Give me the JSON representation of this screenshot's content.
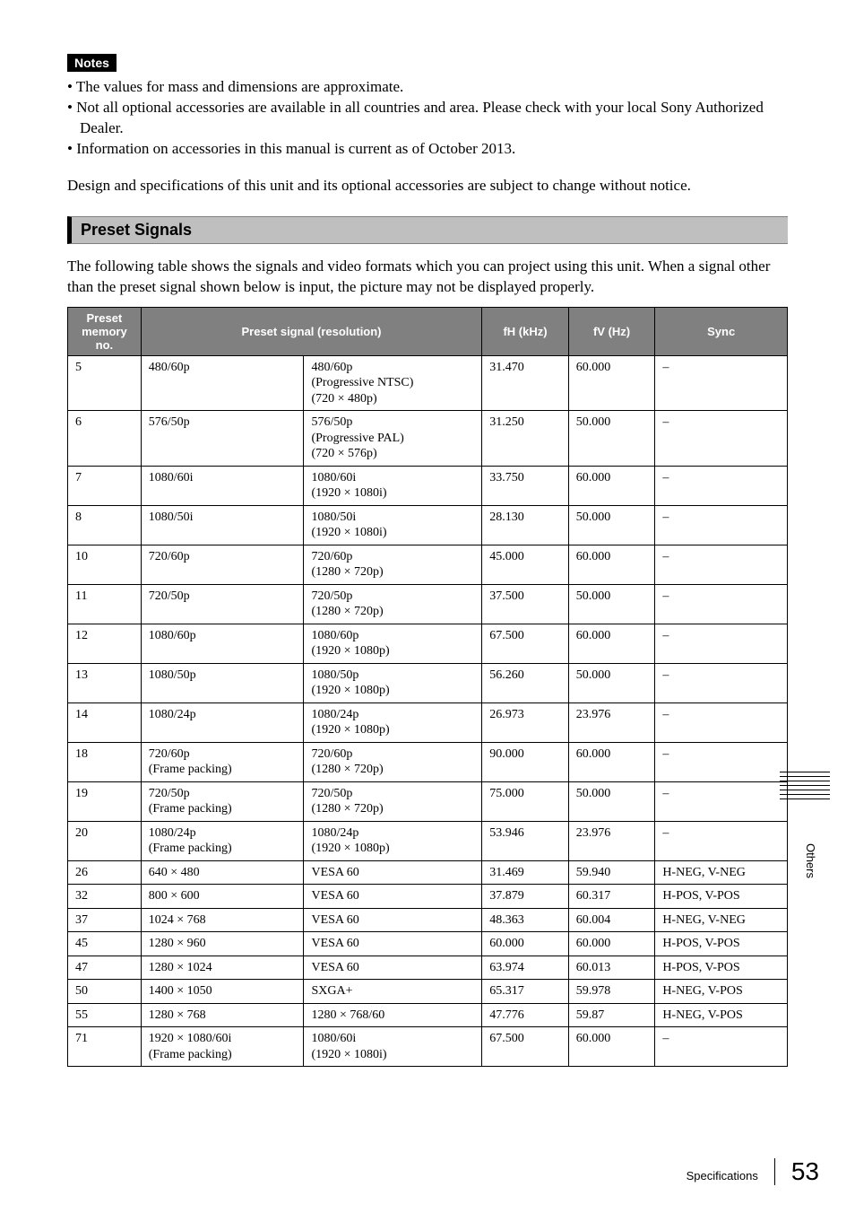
{
  "notes_label": "Notes",
  "notes": [
    "The values for mass and dimensions are approximate.",
    "Not all optional accessories are available in all countries and area. Please check with your local Sony Authorized Dealer.",
    "Information on accessories in this manual is current as of October 2013."
  ],
  "design_note": "Design and specifications of this unit and its optional accessories are subject to change without notice.",
  "section_title": "Preset Signals",
  "section_intro": "The following table shows the signals and video formats which you can project using this unit. When a signal other than the preset signal shown below is input, the picture may not be displayed properly.",
  "table": {
    "columns": [
      {
        "key": "preset",
        "label": "Preset memory no.",
        "class": "col-preset"
      },
      {
        "key": "signal",
        "label": "Preset signal (resolution)",
        "colspan": 2
      },
      {
        "key": "fh",
        "label": "fH (kHz)",
        "class": "col-fh"
      },
      {
        "key": "fv",
        "label": "fV (Hz)",
        "class": "col-fv"
      },
      {
        "key": "sync",
        "label": "Sync",
        "class": "col-sync"
      }
    ],
    "col_classes": [
      "col-preset",
      "col-sig1",
      "col-sig2",
      "col-fh",
      "col-fv",
      "col-sync"
    ],
    "rows": [
      [
        "5",
        "480/60p",
        "480/60p\n(Progressive NTSC)\n(720 × 480p)",
        "31.470",
        "60.000",
        "–"
      ],
      [
        "6",
        "576/50p",
        "576/50p\n(Progressive PAL)\n(720 × 576p)",
        "31.250",
        "50.000",
        "–"
      ],
      [
        "7",
        "1080/60i",
        "1080/60i\n(1920 × 1080i)",
        "33.750",
        "60.000",
        "–"
      ],
      [
        "8",
        "1080/50i",
        "1080/50i\n(1920 × 1080i)",
        "28.130",
        "50.000",
        "–"
      ],
      [
        "10",
        "720/60p",
        "720/60p\n(1280 × 720p)",
        "45.000",
        "60.000",
        "–"
      ],
      [
        "11",
        "720/50p",
        "720/50p\n(1280 × 720p)",
        "37.500",
        "50.000",
        "–"
      ],
      [
        "12",
        "1080/60p",
        "1080/60p\n(1920 × 1080p)",
        "67.500",
        "60.000",
        "–"
      ],
      [
        "13",
        "1080/50p",
        "1080/50p\n(1920 × 1080p)",
        "56.260",
        "50.000",
        "–"
      ],
      [
        "14",
        "1080/24p",
        "1080/24p\n(1920 × 1080p)",
        "26.973",
        "23.976",
        "–"
      ],
      [
        "18",
        "720/60p\n(Frame packing)",
        "720/60p\n(1280 × 720p)",
        "90.000",
        "60.000",
        "–"
      ],
      [
        "19",
        "720/50p\n(Frame packing)",
        "720/50p\n(1280 × 720p)",
        "75.000",
        "50.000",
        "–"
      ],
      [
        "20",
        "1080/24p\n(Frame packing)",
        "1080/24p\n(1920 × 1080p)",
        "53.946",
        "23.976",
        "–"
      ],
      [
        "26",
        "640 × 480",
        "VESA 60",
        "31.469",
        "59.940",
        "H-NEG, V-NEG"
      ],
      [
        "32",
        "800 × 600",
        "VESA 60",
        "37.879",
        "60.317",
        "H-POS, V-POS"
      ],
      [
        "37",
        "1024 × 768",
        "VESA 60",
        "48.363",
        "60.004",
        "H-NEG, V-NEG"
      ],
      [
        "45",
        "1280 × 960",
        "VESA 60",
        "60.000",
        "60.000",
        "H-POS, V-POS"
      ],
      [
        "47",
        "1280 × 1024",
        "VESA 60",
        "63.974",
        "60.013",
        "H-POS, V-POS"
      ],
      [
        "50",
        "1400 × 1050",
        "SXGA+",
        "65.317",
        "59.978",
        "H-NEG, V-POS"
      ],
      [
        "55",
        "1280 × 768",
        "1280 × 768/60",
        "47.776",
        "59.87",
        "H-NEG, V-POS"
      ],
      [
        "71",
        "1920 × 1080/60i\n(Frame packing)",
        "1080/60i\n(1920 × 1080i)",
        "67.500",
        "60.000",
        "–"
      ]
    ]
  },
  "side_tab": "Others",
  "footer_label": "Specifications",
  "footer_page": "53"
}
